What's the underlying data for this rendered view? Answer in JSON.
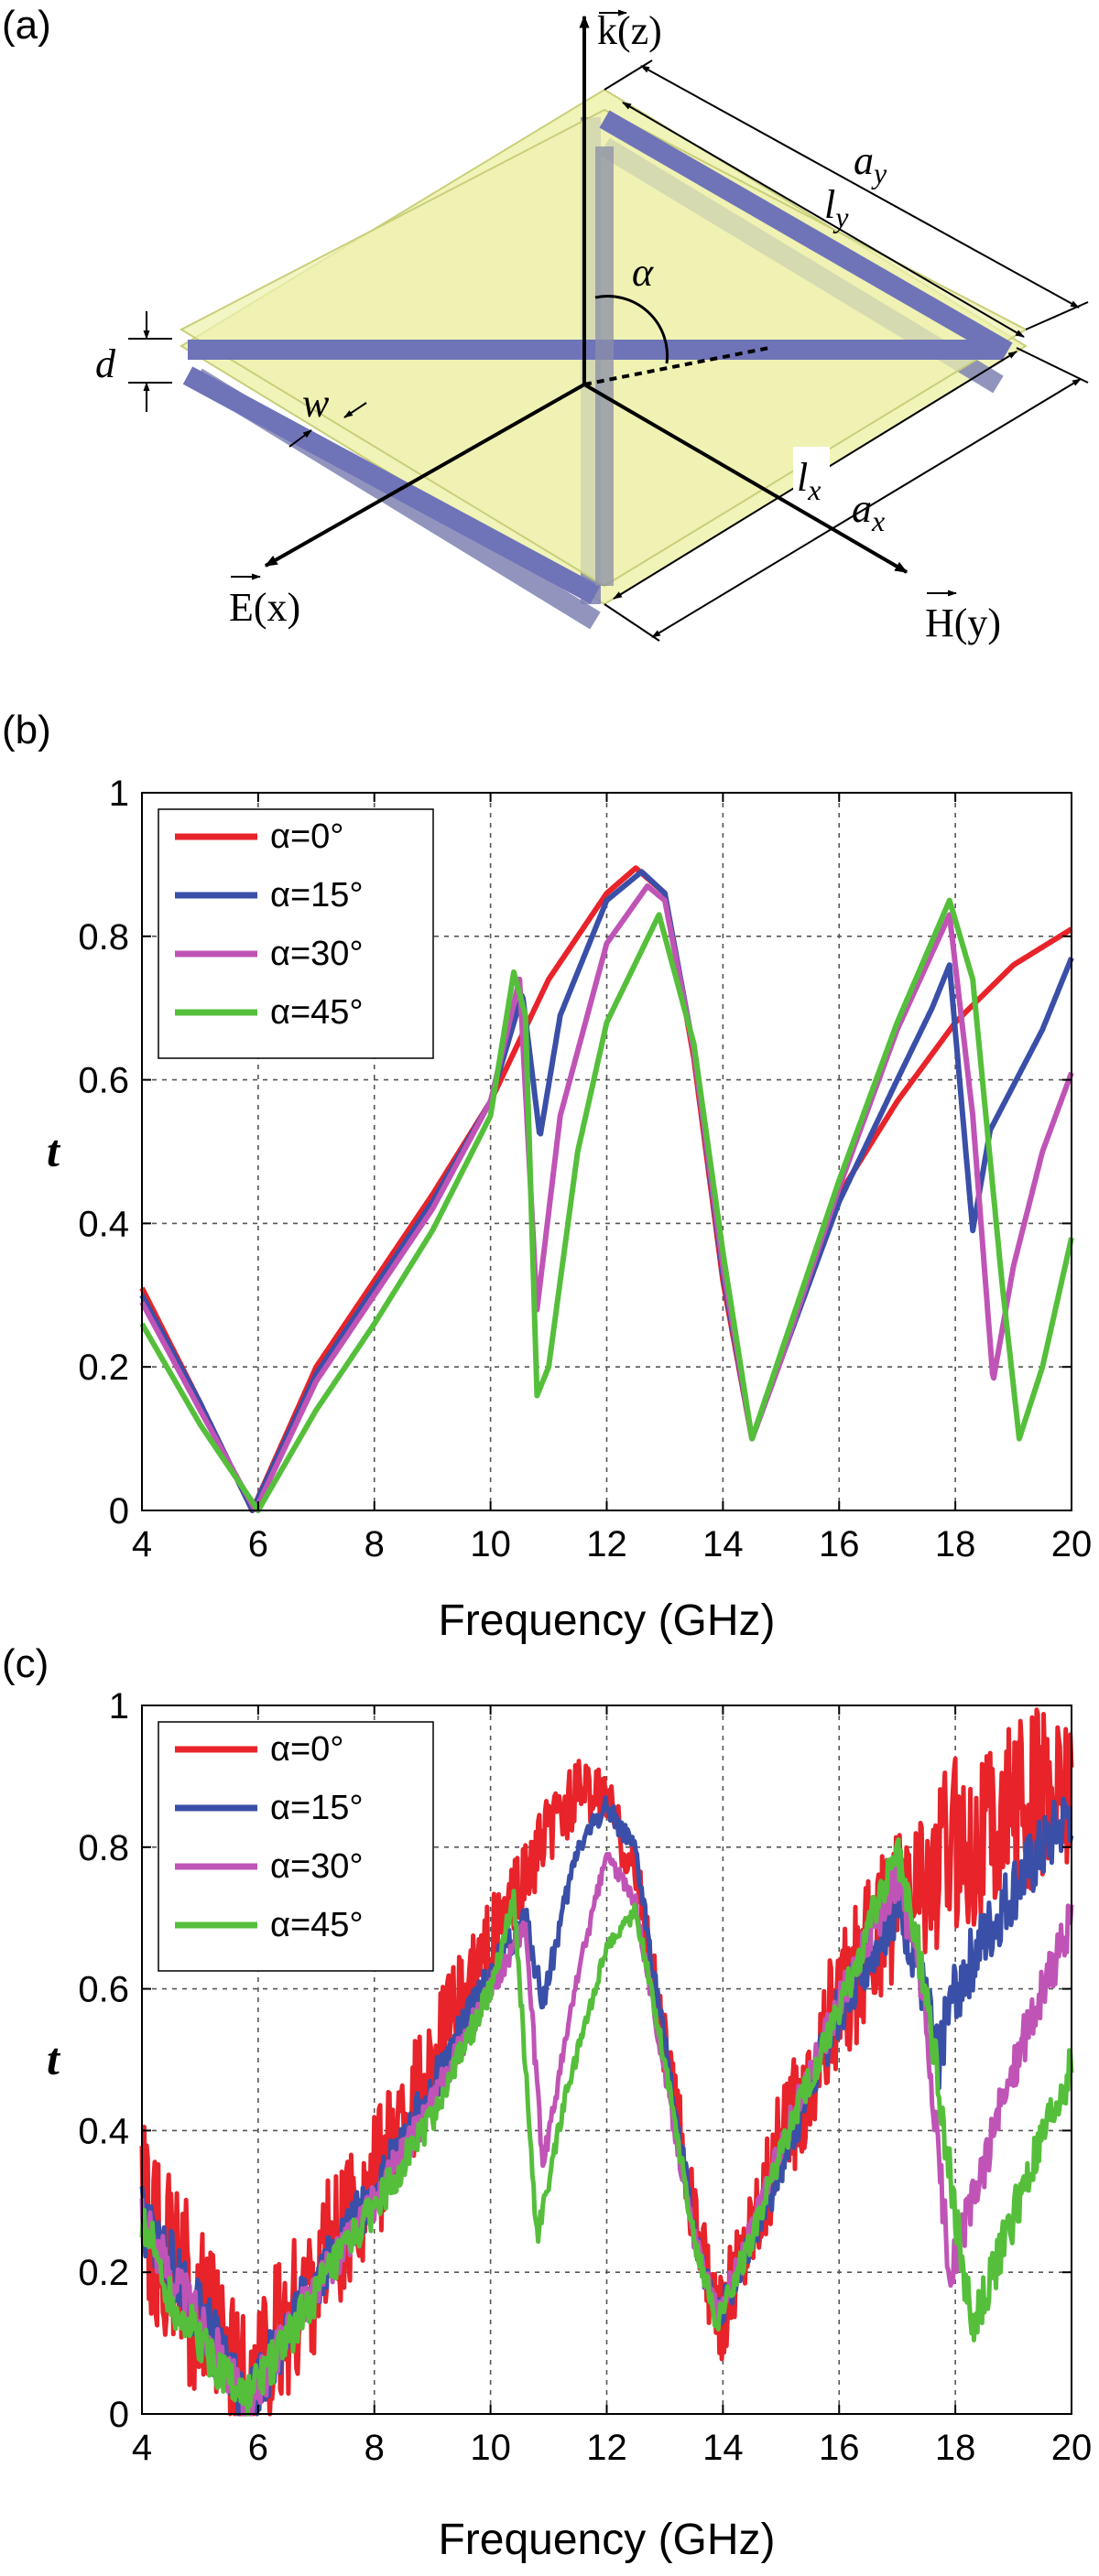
{
  "panels": {
    "a": "(a)",
    "b": "(b)",
    "c": "(c)"
  },
  "diagram": {
    "k_axis": "k(z)",
    "e_axis": "E(x)",
    "h_axis": "H(y)",
    "alpha": "α",
    "d": "d",
    "w": "w",
    "ly": "l",
    "ly_sub": "y",
    "ay": "a",
    "ay_sub": "y",
    "lx": "l",
    "lx_sub": "x",
    "ax": "a",
    "ax_sub": "x"
  },
  "chart_data": [
    {
      "type": "line",
      "panel": "(b)",
      "xlabel": "Frequency (GHz)",
      "ylabel": "t",
      "xlim": [
        4,
        20
      ],
      "ylim": [
        0,
        1
      ],
      "xticks": [
        4,
        6,
        8,
        10,
        12,
        14,
        16,
        18,
        20
      ],
      "yticks": [
        0,
        0.2,
        0.4,
        0.6,
        0.8,
        1
      ],
      "xtick_labels": [
        "4",
        "6",
        "8",
        "10",
        "12",
        "14",
        "16",
        "18",
        "20"
      ],
      "ytick_labels": [
        "0",
        "0.2",
        "0.4",
        "0.6",
        "0.8",
        "1"
      ],
      "grid": true,
      "legend": "top-left",
      "noisy": false,
      "series": [
        {
          "name": "α=0°",
          "color": "#e8232a",
          "points": [
            [
              4,
              0.31
            ],
            [
              5,
              0.15
            ],
            [
              5.9,
              0.0
            ],
            [
              7,
              0.2
            ],
            [
              8,
              0.32
            ],
            [
              9,
              0.44
            ],
            [
              10,
              0.57
            ],
            [
              11,
              0.74
            ],
            [
              12,
              0.86
            ],
            [
              12.5,
              0.895
            ],
            [
              13,
              0.86
            ],
            [
              13.5,
              0.63
            ],
            [
              14,
              0.32
            ],
            [
              14.5,
              0.1
            ],
            [
              15,
              0.21
            ],
            [
              16,
              0.44
            ],
            [
              17,
              0.57
            ],
            [
              18,
              0.68
            ],
            [
              19,
              0.76
            ],
            [
              20,
              0.81
            ]
          ]
        },
        {
          "name": "α=15°",
          "color": "#3a4fa8",
          "points": [
            [
              4,
              0.3
            ],
            [
              5,
              0.15
            ],
            [
              5.9,
              0.0
            ],
            [
              7,
              0.19
            ],
            [
              8,
              0.31
            ],
            [
              9,
              0.43
            ],
            [
              10,
              0.57
            ],
            [
              10.55,
              0.72
            ],
            [
              10.85,
              0.52
            ],
            [
              11.2,
              0.69
            ],
            [
              12,
              0.85
            ],
            [
              12.6,
              0.89
            ],
            [
              13,
              0.86
            ],
            [
              13.5,
              0.64
            ],
            [
              14,
              0.33
            ],
            [
              14.5,
              0.1
            ],
            [
              15,
              0.21
            ],
            [
              16,
              0.43
            ],
            [
              17,
              0.6
            ],
            [
              17.6,
              0.7
            ],
            [
              17.9,
              0.76
            ],
            [
              18.3,
              0.39
            ],
            [
              18.6,
              0.53
            ],
            [
              19.5,
              0.67
            ],
            [
              20,
              0.77
            ]
          ]
        },
        {
          "name": "α=30°",
          "color": "#c054b6",
          "points": [
            [
              4,
              0.29
            ],
            [
              5,
              0.14
            ],
            [
              5.95,
              0.0
            ],
            [
              7,
              0.18
            ],
            [
              8,
              0.3
            ],
            [
              9,
              0.42
            ],
            [
              10,
              0.57
            ],
            [
              10.5,
              0.74
            ],
            [
              10.8,
              0.28
            ],
            [
              11.2,
              0.55
            ],
            [
              12,
              0.79
            ],
            [
              12.7,
              0.87
            ],
            [
              13,
              0.85
            ],
            [
              13.5,
              0.64
            ],
            [
              14,
              0.34
            ],
            [
              14.5,
              0.1
            ],
            [
              15,
              0.21
            ],
            [
              16,
              0.45
            ],
            [
              17,
              0.67
            ],
            [
              17.9,
              0.83
            ],
            [
              18.3,
              0.55
            ],
            [
              18.65,
              0.18
            ],
            [
              19,
              0.34
            ],
            [
              19.5,
              0.5
            ],
            [
              20,
              0.61
            ]
          ]
        },
        {
          "name": "α=45°",
          "color": "#55bf3b",
          "points": [
            [
              4,
              0.26
            ],
            [
              5,
              0.12
            ],
            [
              6,
              0.0
            ],
            [
              7,
              0.14
            ],
            [
              8,
              0.26
            ],
            [
              9,
              0.39
            ],
            [
              10,
              0.55
            ],
            [
              10.4,
              0.75
            ],
            [
              10.6,
              0.69
            ],
            [
              10.8,
              0.16
            ],
            [
              11,
              0.2
            ],
            [
              11.5,
              0.5
            ],
            [
              12,
              0.68
            ],
            [
              12.9,
              0.83
            ],
            [
              13.5,
              0.65
            ],
            [
              14,
              0.36
            ],
            [
              14.5,
              0.1
            ],
            [
              15,
              0.22
            ],
            [
              16,
              0.46
            ],
            [
              17,
              0.68
            ],
            [
              17.9,
              0.85
            ],
            [
              18.3,
              0.74
            ],
            [
              18.8,
              0.32
            ],
            [
              19.1,
              0.1
            ],
            [
              19.5,
              0.2
            ],
            [
              20,
              0.38
            ]
          ]
        }
      ]
    },
    {
      "type": "line",
      "panel": "(c)",
      "xlabel": "Frequency (GHz)",
      "ylabel": "t",
      "xlim": [
        4,
        20
      ],
      "ylim": [
        0,
        1
      ],
      "xticks": [
        4,
        6,
        8,
        10,
        12,
        14,
        16,
        18,
        20
      ],
      "yticks": [
        0,
        0.2,
        0.4,
        0.6,
        0.8,
        1
      ],
      "xtick_labels": [
        "4",
        "6",
        "8",
        "10",
        "12",
        "14",
        "16",
        "18",
        "20"
      ],
      "ytick_labels": [
        "0",
        "0.2",
        "0.4",
        "0.6",
        "0.8",
        "1"
      ],
      "grid": true,
      "legend": "top-left",
      "noisy": true,
      "series": [
        {
          "name": "α=0°",
          "color": "#e8232a",
          "points": [
            [
              4,
              0.29
            ],
            [
              5,
              0.14
            ],
            [
              5.8,
              0.02
            ],
            [
              7,
              0.2
            ],
            [
              8,
              0.33
            ],
            [
              9,
              0.5
            ],
            [
              10,
              0.66
            ],
            [
              11,
              0.82
            ],
            [
              11.5,
              0.88
            ],
            [
              12,
              0.87
            ],
            [
              12.5,
              0.76
            ],
            [
              13,
              0.52
            ],
            [
              13.5,
              0.28
            ],
            [
              13.9,
              0.12
            ],
            [
              14.5,
              0.28
            ],
            [
              15,
              0.38
            ],
            [
              16,
              0.58
            ],
            [
              17,
              0.72
            ],
            [
              18,
              0.8
            ],
            [
              19,
              0.85
            ],
            [
              20,
              0.9
            ]
          ]
        },
        {
          "name": "α=15°",
          "color": "#3a4fa8",
          "points": [
            [
              4,
              0.28
            ],
            [
              5,
              0.14
            ],
            [
              5.8,
              0.01
            ],
            [
              7,
              0.19
            ],
            [
              8,
              0.31
            ],
            [
              9,
              0.46
            ],
            [
              10,
              0.62
            ],
            [
              10.6,
              0.7
            ],
            [
              10.9,
              0.58
            ],
            [
              11.5,
              0.8
            ],
            [
              12,
              0.86
            ],
            [
              12.5,
              0.79
            ],
            [
              13,
              0.52
            ],
            [
              13.5,
              0.26
            ],
            [
              13.9,
              0.13
            ],
            [
              14.5,
              0.25
            ],
            [
              15,
              0.35
            ],
            [
              16,
              0.57
            ],
            [
              17,
              0.72
            ],
            [
              17.3,
              0.65
            ],
            [
              17.7,
              0.5
            ],
            [
              18,
              0.6
            ],
            [
              19,
              0.74
            ],
            [
              20,
              0.85
            ]
          ]
        },
        {
          "name": "α=30°",
          "color": "#c054b6",
          "points": [
            [
              4,
              0.27
            ],
            [
              5,
              0.13
            ],
            [
              5.8,
              0.01
            ],
            [
              7,
              0.18
            ],
            [
              8,
              0.3
            ],
            [
              9,
              0.44
            ],
            [
              10,
              0.6
            ],
            [
              10.6,
              0.69
            ],
            [
              10.9,
              0.35
            ],
            [
              11.5,
              0.62
            ],
            [
              12,
              0.79
            ],
            [
              12.5,
              0.72
            ],
            [
              13,
              0.48
            ],
            [
              13.5,
              0.25
            ],
            [
              13.9,
              0.14
            ],
            [
              14.5,
              0.26
            ],
            [
              15,
              0.38
            ],
            [
              16,
              0.58
            ],
            [
              17,
              0.76
            ],
            [
              17.4,
              0.62
            ],
            [
              17.9,
              0.2
            ],
            [
              18.3,
              0.3
            ],
            [
              19,
              0.49
            ],
            [
              20,
              0.7
            ]
          ]
        },
        {
          "name": "α=45°",
          "color": "#55bf3b",
          "points": [
            [
              4,
              0.28
            ],
            [
              4.5,
              0.16
            ],
            [
              5.2,
              0.08
            ],
            [
              5.8,
              0.02
            ],
            [
              7,
              0.17
            ],
            [
              8,
              0.29
            ],
            [
              9,
              0.42
            ],
            [
              10,
              0.6
            ],
            [
              10.4,
              0.73
            ],
            [
              10.8,
              0.25
            ],
            [
              11.3,
              0.45
            ],
            [
              12,
              0.66
            ],
            [
              12.5,
              0.71
            ],
            [
              13,
              0.5
            ],
            [
              13.5,
              0.25
            ],
            [
              13.9,
              0.13
            ],
            [
              14.5,
              0.25
            ],
            [
              15,
              0.37
            ],
            [
              16,
              0.57
            ],
            [
              17,
              0.8
            ],
            [
              17.5,
              0.6
            ],
            [
              18,
              0.28
            ],
            [
              18.3,
              0.12
            ],
            [
              19,
              0.28
            ],
            [
              20,
              0.49
            ]
          ]
        }
      ]
    }
  ]
}
